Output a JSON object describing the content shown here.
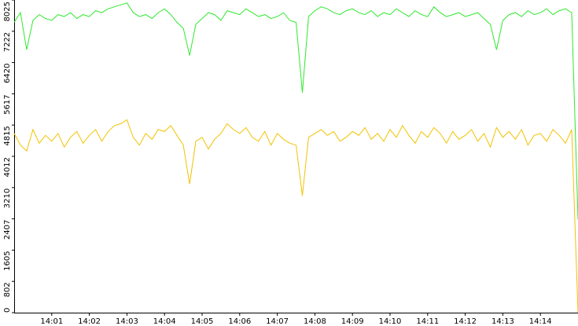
{
  "chart_data": {
    "type": "line",
    "x": [
      "14:00:00",
      "14:00:10",
      "14:00:20",
      "14:00:30",
      "14:00:40",
      "14:00:50",
      "14:01:00",
      "14:01:10",
      "14:01:20",
      "14:01:30",
      "14:01:40",
      "14:01:50",
      "14:02:00",
      "14:02:10",
      "14:02:20",
      "14:02:30",
      "14:02:40",
      "14:02:50",
      "14:03:00",
      "14:03:10",
      "14:03:20",
      "14:03:30",
      "14:03:40",
      "14:03:50",
      "14:04:00",
      "14:04:10",
      "14:04:20",
      "14:04:30",
      "14:04:40",
      "14:04:50",
      "14:05:00",
      "14:05:10",
      "14:05:20",
      "14:05:30",
      "14:05:40",
      "14:05:50",
      "14:06:00",
      "14:06:10",
      "14:06:20",
      "14:06:30",
      "14:06:40",
      "14:06:50",
      "14:07:00",
      "14:07:10",
      "14:07:20",
      "14:07:30",
      "14:07:40",
      "14:07:50",
      "14:08:00",
      "14:08:10",
      "14:08:20",
      "14:08:30",
      "14:08:40",
      "14:08:50",
      "14:09:00",
      "14:09:10",
      "14:09:20",
      "14:09:30",
      "14:09:40",
      "14:09:50",
      "14:10:00",
      "14:10:10",
      "14:10:20",
      "14:10:30",
      "14:10:40",
      "14:10:50",
      "14:11:00",
      "14:11:10",
      "14:11:20",
      "14:11:30",
      "14:11:40",
      "14:11:50",
      "14:12:00",
      "14:12:10",
      "14:12:20",
      "14:12:30",
      "14:12:40",
      "14:12:50",
      "14:13:00",
      "14:13:10",
      "14:13:20",
      "14:13:30",
      "14:13:40",
      "14:13:50",
      "14:14:00",
      "14:14:10",
      "14:14:20",
      "14:14:30",
      "14:14:40",
      "14:14:50",
      "14:15:00"
    ],
    "series": [
      {
        "color": "#2ee82e",
        "values": [
          7450,
          7700,
          6750,
          7500,
          7650,
          7550,
          7500,
          7650,
          7600,
          7700,
          7550,
          7650,
          7600,
          7750,
          7700,
          7800,
          7850,
          7900,
          7950,
          7700,
          7600,
          7650,
          7550,
          7700,
          7800,
          7650,
          7450,
          7300,
          6600,
          7400,
          7550,
          7700,
          7650,
          7500,
          7750,
          7700,
          7650,
          7800,
          7700,
          7600,
          7650,
          7550,
          7600,
          7700,
          7500,
          7450,
          5650,
          7600,
          7750,
          7850,
          7800,
          7700,
          7650,
          7750,
          7800,
          7700,
          7650,
          7750,
          7600,
          7700,
          7650,
          7800,
          7700,
          7600,
          7750,
          7650,
          7600,
          7850,
          7700,
          7600,
          7650,
          7700,
          7600,
          7650,
          7700,
          7550,
          7400,
          6750,
          7500,
          7650,
          7700,
          7600,
          7750,
          7650,
          7700,
          7800,
          7650,
          7750,
          7800,
          7700,
          2400
        ]
      },
      {
        "color": "#f2c200",
        "values": [
          4600,
          4300,
          4150,
          4700,
          4350,
          4550,
          4400,
          4600,
          4250,
          4500,
          4650,
          4350,
          4550,
          4700,
          4400,
          4650,
          4800,
          4850,
          4950,
          4500,
          4300,
          4600,
          4450,
          4700,
          4650,
          4800,
          4550,
          4300,
          3300,
          4400,
          4500,
          4200,
          4450,
          4600,
          4850,
          4700,
          4600,
          4750,
          4500,
          4400,
          4650,
          4300,
          4600,
          4450,
          4350,
          4300,
          3000,
          4500,
          4600,
          4700,
          4550,
          4650,
          4400,
          4500,
          4650,
          4550,
          4750,
          4450,
          4600,
          4400,
          4700,
          4500,
          4800,
          4550,
          4350,
          4650,
          4500,
          4750,
          4600,
          4350,
          4650,
          4450,
          4550,
          4700,
          4400,
          4600,
          4250,
          4750,
          4500,
          4650,
          4450,
          4700,
          4300,
          4550,
          4600,
          4400,
          4700,
          4550,
          4350,
          4700,
          0
        ]
      }
    ],
    "xlim": [
      "14:00:00",
      "14:15:00"
    ],
    "xticks": [
      "14:01",
      "14:02",
      "14:03",
      "14:04",
      "14:05",
      "14:06",
      "14:07",
      "14:08",
      "14:09",
      "14:10",
      "14:11",
      "14:12",
      "14:13",
      "14:14"
    ],
    "ylim": [
      0,
      8025
    ],
    "yticks": [
      0,
      802,
      1605,
      2407,
      3210,
      4012,
      4815,
      5617,
      6420,
      7222,
      8025
    ]
  }
}
